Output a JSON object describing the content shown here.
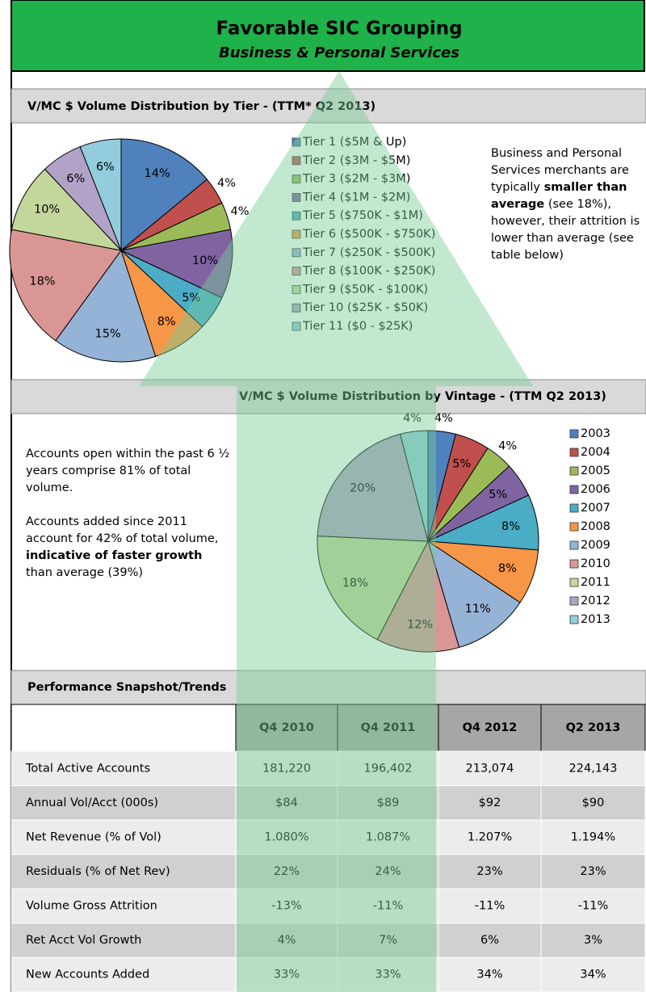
{
  "header": {
    "title": "Favorable SIC Grouping",
    "subtitle": "Business & Personal Services"
  },
  "chart_data": [
    {
      "type": "pie",
      "title": "V/MC $ Volume Distribution by Tier - (TTM* Q2 2013)",
      "categories": [
        "Tier 1 ($5M & Up)",
        "Tier 2 ($3M - $5M)",
        "Tier 3 ($2M - $3M)",
        "Tier 4 ($1M - $2M)",
        "Tier 5 ($750K - $1M)",
        "Tier 6 ($500K - $750K)",
        "Tier 7 ($250K - $500K)",
        "Tier 8 ($100K - $250K)",
        "Tier 9 ($50K - $100K)",
        "Tier 10 ($25K - $50K)",
        "Tier 11 ($0 - $25K)"
      ],
      "values": [
        14,
        4,
        4,
        10,
        5,
        8,
        15,
        18,
        10,
        6,
        6
      ],
      "value_labels": [
        "14%",
        "4%",
        "4%",
        "10%",
        "5%",
        "8%",
        "15%",
        "18%",
        "10%",
        "6%",
        "6%"
      ],
      "colors": [
        "#4f81bd",
        "#c0504d",
        "#9bbb59",
        "#8064a2",
        "#4bacc6",
        "#f79646",
        "#95b3d7",
        "#d99694",
        "#c3d69b",
        "#b3a2c7",
        "#93cddd"
      ]
    },
    {
      "type": "pie",
      "title": "V/MC $ Volume Distribution by Vintage - (TTM Q2 2013)",
      "categories": [
        "2003",
        "2004",
        "2005",
        "2006",
        "2007",
        "2008",
        "2009",
        "2010",
        "2011",
        "2012",
        "2013"
      ],
      "values": [
        4,
        5,
        4,
        5,
        8,
        8,
        11,
        12,
        18,
        20,
        4
      ],
      "value_labels": [
        "4%",
        "5%",
        "4%",
        "5%",
        "8%",
        "8%",
        "11%",
        "12%",
        "18%",
        "20%",
        "4%"
      ],
      "colors": [
        "#4f81bd",
        "#c0504d",
        "#9bbb59",
        "#8064a2",
        "#4bacc6",
        "#f79646",
        "#95b3d7",
        "#d99694",
        "#c3d69b",
        "#b3a2c7",
        "#93cddd"
      ]
    }
  ],
  "notes": {
    "tier": [
      "Business and Personal Services merchants are typically ",
      "smaller than average",
      " (see 18%), however, their attrition is lower than average (see table below)"
    ],
    "vintage": [
      [
        "Accounts open within the past 6 ½ years comprise 81% of total volume."
      ],
      [
        "Accounts added since 2011 account for 42% of total volume, ",
        "indicative of faster growth",
        " than average (39%)"
      ]
    ]
  },
  "table": {
    "title": "Performance Snapshot/Trends",
    "columns": [
      "Q4 2010",
      "Q4 2011",
      "Q4 2012",
      "Q2 2013"
    ],
    "rows": [
      [
        "Total Active Accounts",
        "181,220",
        "196,402",
        "213,074",
        "224,143"
      ],
      [
        "Annual Vol/Acct (000s)",
        "$84",
        "$89",
        "$92",
        "$90"
      ],
      [
        "Net Revenue (% of Vol)",
        "1.080%",
        "1.087%",
        "1.207%",
        "1.194%"
      ],
      [
        "Residuals (% of Net Rev)",
        "22%",
        "24%",
        "23%",
        "23%"
      ],
      [
        "Volume Gross Attrition",
        "-13%",
        "-11%",
        "-11%",
        "-11%"
      ],
      [
        "Ret Acct Vol Growth",
        "4%",
        "7%",
        "6%",
        "3%"
      ],
      [
        "New Accounts Added",
        "33%",
        "33%",
        "34%",
        "34%"
      ]
    ]
  }
}
